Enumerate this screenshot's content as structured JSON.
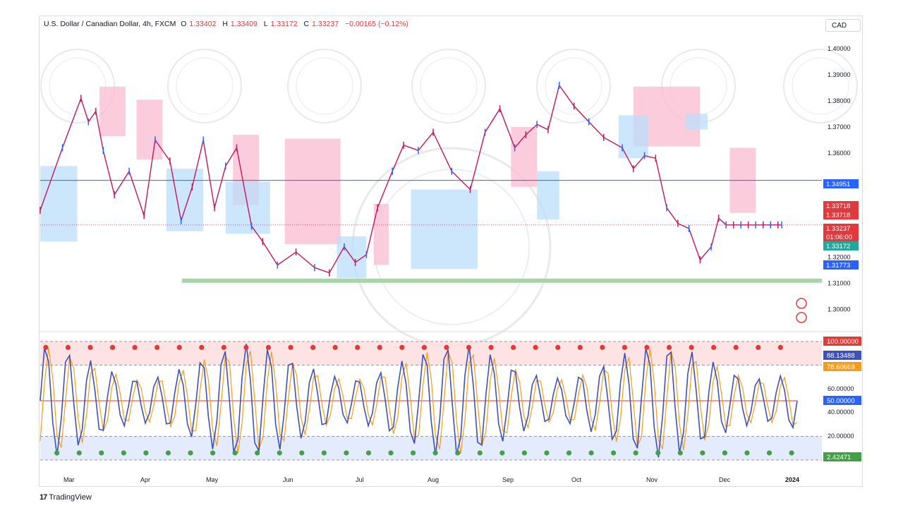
{
  "header": {
    "symbol": "U.S. Dollar / Canadian Dollar, 4h, FXCM",
    "o_key": "O",
    "o_val": "1.33402",
    "h_key": "H",
    "h_val": "1.33409",
    "l_key": "L",
    "l_val": "1.33172",
    "c_key": "C",
    "c_val": "1.33237",
    "change": "−0.00165 (−0.12%)",
    "currency": "CAD"
  },
  "footer": {
    "brand": "TradingView"
  },
  "colors": {
    "candle_red": "#c2185b",
    "candle_blue": "#2962ff",
    "supply_zone": "#f8bbd0",
    "demand_zone": "#bbdefb",
    "support_line": "#a5d6a7",
    "osc_line": "#3f51b5",
    "osc_signal": "#f59d1b",
    "overbought_dot": "#e53935",
    "oversold_dot": "#43a047"
  },
  "chart_data": [
    {
      "type": "candlestick",
      "x_ticks": [
        "Mar",
        "Apr",
        "May",
        "Jun",
        "Jul",
        "Aug",
        "Sep",
        "Oct",
        "Nov",
        "Dec",
        "2024"
      ],
      "y_ticks": [
        "1.40000",
        "1.39000",
        "1.38000",
        "1.37000",
        "1.36000",
        "1.32000",
        "1.31000",
        "1.30000"
      ],
      "ylim": [
        1.2955,
        1.4025
      ],
      "series": [
        {
          "x": [
            0,
            0.03,
            0.055,
            0.065,
            0.075,
            0.085,
            0.1,
            0.12,
            0.14,
            0.155,
            0.175,
            0.19,
            0.205,
            0.22,
            0.235,
            0.25,
            0.265,
            0.285,
            0.3,
            0.32,
            0.345,
            0.37,
            0.39,
            0.41,
            0.425,
            0.44,
            0.455,
            0.475,
            0.49,
            0.51,
            0.53,
            0.555,
            0.58,
            0.6,
            0.62,
            0.64,
            0.655,
            0.67,
            0.685,
            0.7,
            0.72,
            0.74,
            0.76,
            0.785,
            0.8,
            0.815,
            0.83,
            0.845,
            0.86,
            0.875,
            0.89,
            0.905,
            0.915,
            0.925,
            0.935,
            0.945,
            0.955,
            0.965,
            0.975,
            0.985,
            0.995,
            1.0
          ],
          "y": [
            1.338,
            1.362,
            1.381,
            1.372,
            1.376,
            1.361,
            1.344,
            1.353,
            1.336,
            1.365,
            1.357,
            1.334,
            1.347,
            1.365,
            1.339,
            1.355,
            1.362,
            1.332,
            1.326,
            1.317,
            1.322,
            1.316,
            1.314,
            1.324,
            1.318,
            1.321,
            1.339,
            1.353,
            1.363,
            1.361,
            1.368,
            1.353,
            1.346,
            1.368,
            1.377,
            1.362,
            1.367,
            1.371,
            1.369,
            1.386,
            1.378,
            1.372,
            1.366,
            1.362,
            1.354,
            1.359,
            1.358,
            1.339,
            1.333,
            1.331,
            1.319,
            1.324,
            1.335,
            1.3324,
            1.3324,
            1.3324,
            1.3324,
            1.3324,
            1.3324,
            1.3324,
            1.3324,
            1.3324
          ]
        }
      ],
      "price_labels": [
        {
          "name": "horizontal-line",
          "value": "1.34951",
          "color": "#2962ff"
        },
        {
          "name": "upper-zone-a",
          "value": "1.33718",
          "color": "#e03a3e"
        },
        {
          "name": "upper-zone-b",
          "value": "1.33718",
          "color": "#e03a3e"
        },
        {
          "name": "last-price",
          "value": "1.33237",
          "color": "#e03a3e"
        },
        {
          "name": "countdown",
          "value": "01:06:00",
          "color": "#e03a3e"
        },
        {
          "name": "low-price",
          "value": "1.33172",
          "color": "#26a69a"
        },
        {
          "name": "lower-zone",
          "value": "1.31773",
          "color": "#2962ff"
        }
      ],
      "support_level": 1.311
    },
    {
      "type": "line",
      "y_ticks": [
        "100.00000",
        "88.13488",
        "78.60669",
        "60.00000",
        "50.00000",
        "40.00000",
        "20.00000",
        "2.42471"
      ],
      "ylim": [
        0,
        100
      ],
      "overbought": 80,
      "oversold": 20,
      "midline": 50,
      "last_values": {
        "main": 88.13488,
        "signal": 78.60669,
        "min": 2.42471
      }
    }
  ]
}
